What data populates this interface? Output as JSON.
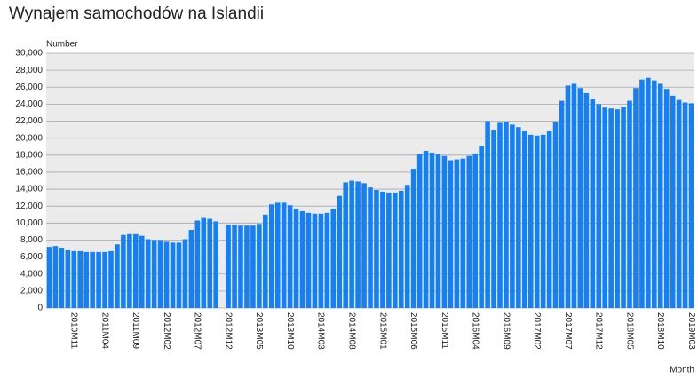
{
  "chart_data": {
    "type": "bar",
    "title": "Wynajem samochodów na Islandii",
    "y_label": "Number",
    "x_label": "Month",
    "color": "#1580f5",
    "grid": true,
    "ylim": [
      0,
      30000
    ],
    "yticks": [
      0,
      {
        "value": 2000,
        "label": "2,000"
      },
      {
        "value": 4000,
        "label": "4,000"
      },
      {
        "value": 6000,
        "label": "6,000"
      },
      {
        "value": 8000,
        "label": "8,000"
      },
      {
        "value": 10000,
        "label": "10,000"
      },
      {
        "value": 12000,
        "label": "12,000"
      },
      {
        "value": 14000,
        "label": "14,000"
      },
      {
        "value": 16000,
        "label": "16,000"
      },
      {
        "value": 18000,
        "label": "18,000"
      },
      {
        "value": 20000,
        "label": "20,000"
      },
      {
        "value": 22000,
        "label": "22,000"
      },
      {
        "value": 24000,
        "label": "24,000"
      },
      {
        "value": 26000,
        "label": "26,000"
      },
      {
        "value": 28000,
        "label": "28,000"
      },
      {
        "value": 30000,
        "label": "30,000"
      }
    ],
    "categories": [
      null,
      null,
      null,
      null,
      "2010M11",
      null,
      null,
      null,
      null,
      "2011M04",
      null,
      null,
      null,
      null,
      "2011M09",
      null,
      null,
      null,
      null,
      "2012M02",
      null,
      null,
      null,
      null,
      "2012M07",
      null,
      null,
      null,
      null,
      "2012M12",
      null,
      null,
      null,
      null,
      "2013M05",
      null,
      null,
      null,
      null,
      "2013M10",
      null,
      null,
      null,
      null,
      "2014M03",
      null,
      null,
      null,
      null,
      "2014M08",
      null,
      null,
      null,
      null,
      "2015M01",
      null,
      null,
      null,
      null,
      "2015M06",
      null,
      null,
      null,
      null,
      "2015M11",
      null,
      null,
      null,
      null,
      "2016M04",
      null,
      null,
      null,
      null,
      "2016M09",
      null,
      null,
      null,
      null,
      "2017M02",
      null,
      null,
      null,
      null,
      "2017M07",
      null,
      null,
      null,
      null,
      "2017M12",
      null,
      null,
      null,
      null,
      "2018M05",
      null,
      null,
      null,
      null,
      "2018M10",
      null,
      null,
      null,
      null,
      "2019M03"
    ],
    "values": [
      7200,
      7300,
      7100,
      6800,
      6700,
      6700,
      6600,
      6600,
      6600,
      6600,
      6700,
      7500,
      8600,
      8700,
      8700,
      8500,
      8100,
      8000,
      8000,
      7800,
      7700,
      7700,
      8100,
      9200,
      10300,
      10600,
      10500,
      10200,
      null,
      9800,
      9800,
      9700,
      9700,
      9700,
      9900,
      11000,
      12200,
      12400,
      12400,
      12100,
      11700,
      11400,
      11200,
      11100,
      11100,
      11200,
      11700,
      13200,
      14800,
      15000,
      14900,
      14700,
      14200,
      13900,
      13700,
      13600,
      13600,
      13800,
      14500,
      16400,
      18100,
      18500,
      18300,
      18100,
      17900,
      17400,
      17500,
      17600,
      17900,
      18200,
      19100,
      22000,
      20900,
      21800,
      21900,
      21600,
      21300,
      20800,
      20400,
      20300,
      20400,
      20800,
      21900,
      24400,
      26200,
      26400,
      25900,
      25300,
      24600,
      24000,
      23600,
      23500,
      23400,
      23700,
      24400,
      25900,
      26900,
      27100,
      26800,
      26400,
      25800,
      25000,
      24500,
      24200,
      24100
    ]
  }
}
